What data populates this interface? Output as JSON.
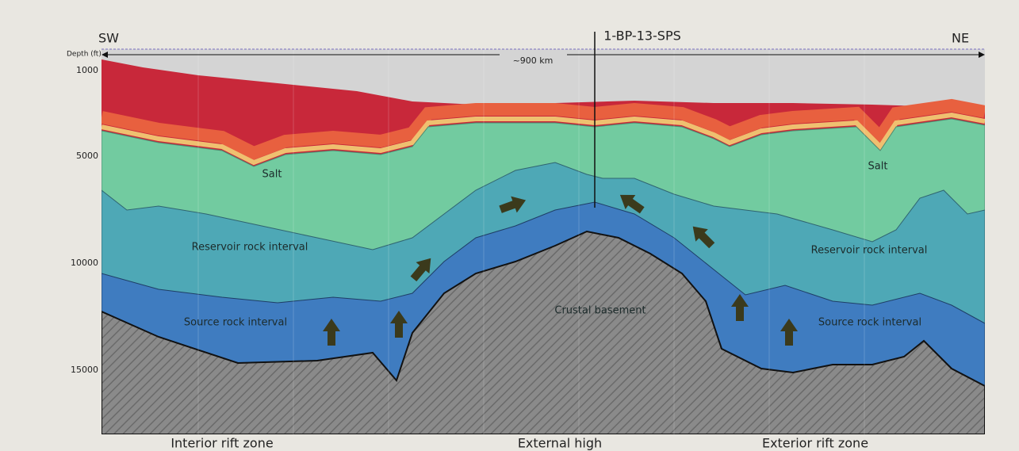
{
  "header": {
    "left": "SW",
    "well": "1-BP-13-SPS",
    "right": "NE"
  },
  "axis": {
    "label": "Depth (ft)",
    "ticks": [
      "1000",
      "5000",
      "10000",
      "15000"
    ]
  },
  "scale": "~900 km",
  "labels": {
    "salt_left": "Salt",
    "salt_right": "Salt",
    "reservoir_left": "Reservoir rock interval",
    "reservoir_right": "Reservoir rock interval",
    "basement": "Crustal basement",
    "source_left": "Source rock interval",
    "source_right": "Source rock interval"
  },
  "zones": [
    "Interior rift zone",
    "External high",
    "Exterior rift zone"
  ]
}
